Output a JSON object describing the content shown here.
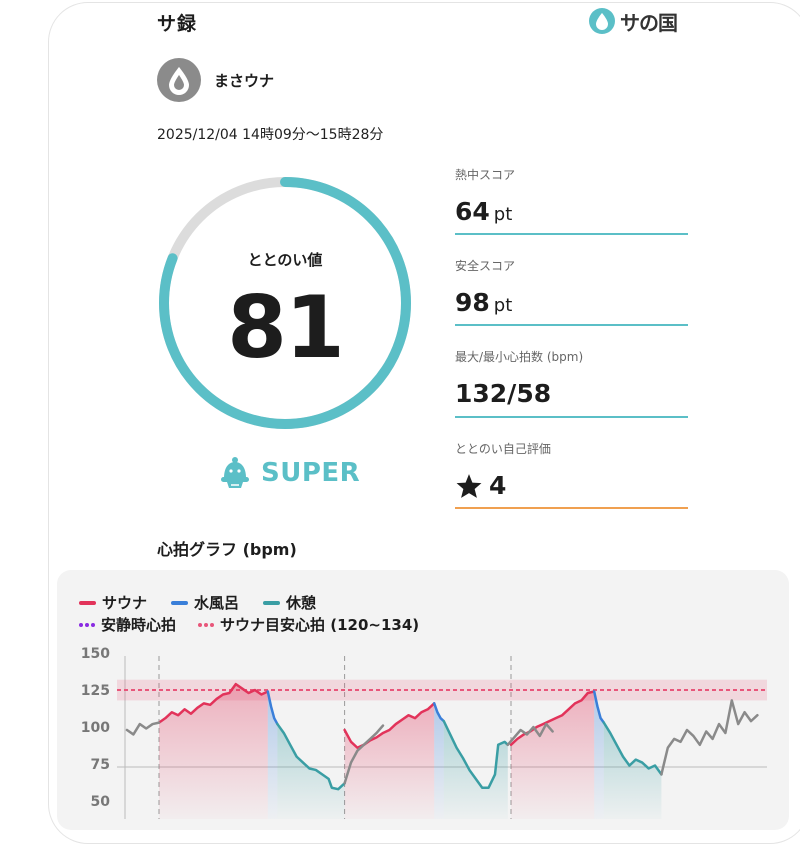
{
  "header": {
    "title": "サ録",
    "brand_logo": "サの国",
    "brand_icon": "droplet-icon"
  },
  "user": {
    "name": "まさウナ",
    "avatar_icon": "droplet-avatar-icon"
  },
  "session": {
    "datetime": "2025/12/04 14時09分～15時28分"
  },
  "totonoi": {
    "label": "ととのい値",
    "value": "81",
    "progress_fraction": 0.81,
    "rank": "SUPER",
    "rank_icon": "sauna-hat-icon"
  },
  "stats": [
    {
      "label": "熱中スコア",
      "value": "64",
      "unit": "pt"
    },
    {
      "label": "安全スコア",
      "value": "98",
      "unit": "pt"
    },
    {
      "label": "最大/最小心拍数 (bpm)",
      "value": "132/58",
      "unit": ""
    },
    {
      "label": "ととのい自己評価",
      "value": "4",
      "unit": "",
      "icon": "star-icon"
    }
  ],
  "graph": {
    "title": "心拍グラフ (bpm)",
    "legend": {
      "sauna": "サウナ",
      "water_bath": "水風呂",
      "rest": "休憩",
      "resting_hr": "安静時心拍",
      "sauna_target": "サウナ目安心拍 (120~134)"
    },
    "colors": {
      "sauna": "#e2335a",
      "water_bath": "#3a7fd9",
      "rest": "#3a9ea4",
      "idle": "#8a8a8a",
      "resting_hr": "#8a2be2",
      "target": "#e8567a",
      "accent": "#5bbfc7",
      "self_eval_line": "#f0a050"
    }
  },
  "chart_data": {
    "type": "line",
    "ylim": [
      50,
      150
    ],
    "yticks": [
      "150",
      "125",
      "100",
      "75",
      "50"
    ],
    "target_band": [
      120,
      134
    ],
    "target_line": 127,
    "series": [
      {
        "name": "サウナ",
        "segments": [
          [
            [
              0,
              105
            ],
            [
              2,
              108
            ],
            [
              4,
              112
            ],
            [
              6,
              110
            ],
            [
              8,
              114
            ],
            [
              10,
              111
            ],
            [
              12,
              115
            ],
            [
              14,
              118
            ],
            [
              16,
              117
            ],
            [
              18,
              121
            ],
            [
              20,
              124
            ],
            [
              22,
              125
            ],
            [
              24,
              131
            ],
            [
              26,
              128
            ],
            [
              28,
              125
            ],
            [
              30,
              127
            ],
            [
              32,
              124
            ],
            [
              34,
              126
            ]
          ],
          [
            [
              58,
              100
            ],
            [
              60,
              92
            ],
            [
              62,
              88
            ],
            [
              64,
              90
            ],
            [
              66,
              93
            ],
            [
              68,
              95
            ],
            [
              70,
              98
            ],
            [
              72,
              100
            ],
            [
              74,
              104
            ],
            [
              76,
              107
            ],
            [
              78,
              110
            ],
            [
              80,
              108
            ],
            [
              82,
              112
            ],
            [
              84,
              114
            ],
            [
              86,
              118
            ]
          ],
          [
            [
              110,
              90
            ],
            [
              112,
              94
            ],
            [
              114,
              97
            ],
            [
              116,
              99
            ],
            [
              118,
              102
            ],
            [
              120,
              104
            ],
            [
              122,
              106
            ],
            [
              124,
              108
            ],
            [
              126,
              110
            ],
            [
              128,
              114
            ],
            [
              130,
              118
            ],
            [
              132,
              120
            ],
            [
              134,
              125
            ],
            [
              136,
              126
            ]
          ]
        ]
      },
      {
        "name": "水風呂",
        "segments": [
          [
            [
              34,
              126
            ],
            [
              35,
              116
            ],
            [
              36,
              108
            ],
            [
              37,
              104
            ]
          ],
          [
            [
              86,
              118
            ],
            [
              87,
              112
            ],
            [
              88,
              108
            ],
            [
              89,
              106
            ]
          ],
          [
            [
              136,
              126
            ],
            [
              137,
              116
            ],
            [
              138,
              108
            ],
            [
              139,
              105
            ]
          ]
        ]
      },
      {
        "name": "休憩",
        "segments": [
          [
            [
              37,
              104
            ],
            [
              39,
              98
            ],
            [
              41,
              90
            ],
            [
              43,
              82
            ],
            [
              45,
              78
            ],
            [
              47,
              74
            ],
            [
              49,
              73
            ],
            [
              51,
              70
            ],
            [
              53,
              67
            ],
            [
              54,
              61
            ],
            [
              56,
              60
            ],
            [
              58,
              64
            ]
          ],
          [
            [
              89,
              106
            ],
            [
              91,
              97
            ],
            [
              93,
              88
            ],
            [
              95,
              81
            ],
            [
              97,
              73
            ],
            [
              99,
              67
            ],
            [
              101,
              61
            ],
            [
              103,
              61
            ],
            [
              105,
              70
            ],
            [
              106,
              90
            ],
            [
              108,
              92
            ],
            [
              109,
              90
            ]
          ],
          [
            [
              139,
              105
            ],
            [
              141,
              98
            ],
            [
              143,
              90
            ],
            [
              145,
              82
            ],
            [
              147,
              76
            ],
            [
              149,
              80
            ],
            [
              151,
              78
            ],
            [
              153,
              74
            ],
            [
              155,
              76
            ],
            [
              157,
              70
            ]
          ]
        ]
      },
      {
        "name": "idle",
        "segments": [
          [
            [
              -10,
              100
            ],
            [
              -8,
              97
            ],
            [
              -6,
              104
            ],
            [
              -4,
              101
            ],
            [
              -2,
              104
            ],
            [
              0,
              105
            ]
          ],
          [
            [
              58,
              64
            ],
            [
              60,
              78
            ],
            [
              62,
              86
            ],
            [
              64,
              90
            ],
            [
              66,
              94
            ],
            [
              68,
              98
            ],
            [
              70,
              103
            ]
          ],
          [
            [
              109,
              90
            ],
            [
              111,
              95
            ],
            [
              113,
              100
            ],
            [
              115,
              97
            ],
            [
              117,
              102
            ],
            [
              119,
              96
            ],
            [
              121,
              104
            ],
            [
              123,
              99
            ]
          ],
          [
            [
              157,
              70
            ],
            [
              159,
              88
            ],
            [
              161,
              94
            ],
            [
              163,
              92
            ],
            [
              165,
              100
            ],
            [
              167,
              96
            ],
            [
              169,
              90
            ],
            [
              171,
              99
            ],
            [
              173,
              94
            ],
            [
              175,
              104
            ],
            [
              177,
              98
            ],
            [
              179,
              120
            ],
            [
              181,
              104
            ],
            [
              183,
              112
            ],
            [
              185,
              106
            ],
            [
              187,
              110
            ]
          ]
        ]
      }
    ]
  }
}
